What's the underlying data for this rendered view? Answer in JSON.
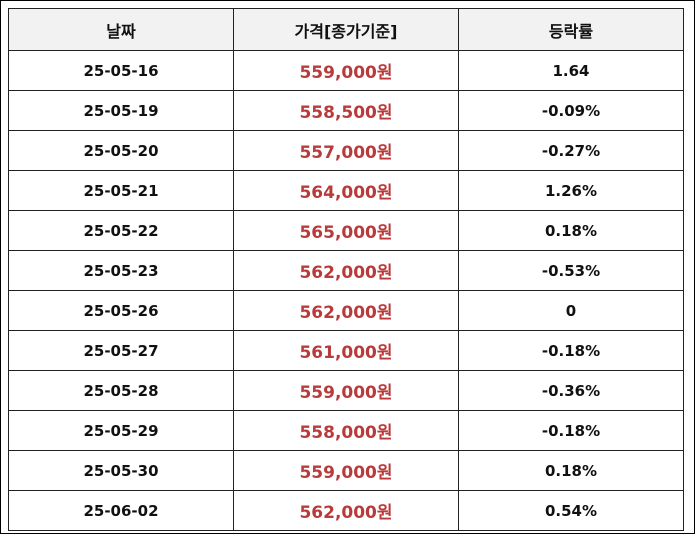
{
  "colors": {
    "header_bg": "#f2f2f2",
    "price_text": "#b83a3a",
    "border": "#222222",
    "text": "#111111"
  },
  "table": {
    "headers": {
      "date": "날짜",
      "price": "가격[종가기준]",
      "change": "등락률"
    },
    "rows": [
      {
        "date": "25-05-16",
        "price": "559,000원",
        "change": "1.64"
      },
      {
        "date": "25-05-19",
        "price": "558,500원",
        "change": "-0.09%"
      },
      {
        "date": "25-05-20",
        "price": "557,000원",
        "change": "-0.27%"
      },
      {
        "date": "25-05-21",
        "price": "564,000원",
        "change": "1.26%"
      },
      {
        "date": "25-05-22",
        "price": "565,000원",
        "change": "0.18%"
      },
      {
        "date": "25-05-23",
        "price": "562,000원",
        "change": "-0.53%"
      },
      {
        "date": "25-05-26",
        "price": "562,000원",
        "change": "0"
      },
      {
        "date": "25-05-27",
        "price": "561,000원",
        "change": "-0.18%"
      },
      {
        "date": "25-05-28",
        "price": "559,000원",
        "change": "-0.36%"
      },
      {
        "date": "25-05-29",
        "price": "558,000원",
        "change": "-0.18%"
      },
      {
        "date": "25-05-30",
        "price": "559,000원",
        "change": "0.18%"
      },
      {
        "date": "25-06-02",
        "price": "562,000원",
        "change": "0.54%"
      }
    ]
  }
}
